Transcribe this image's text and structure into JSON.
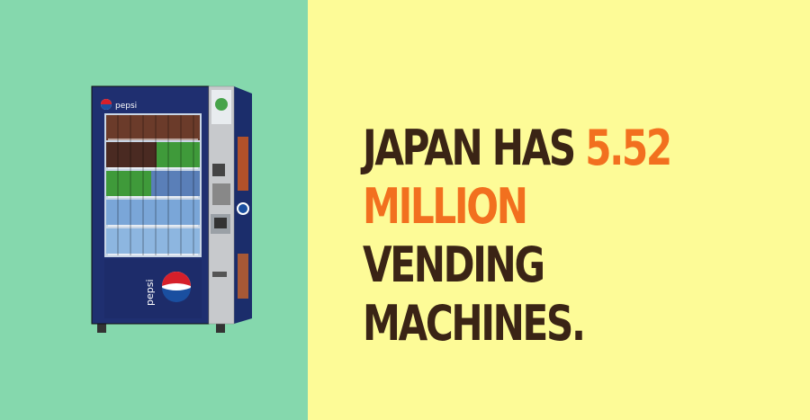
{
  "colors": {
    "left_background": "#85d8ad",
    "right_background": "#fdfb97",
    "headline_text": "#3a2415",
    "highlight_text": "#f2701f"
  },
  "machine": {
    "brand_top": "pepsi",
    "brand_front": "pepsi",
    "icon": "vending-machine-image"
  },
  "headline": {
    "part1": "JAPAN HAS",
    "number": "5.52",
    "highlight_word": "MILLION",
    "part2": "VENDING",
    "part3": "MACHINES."
  }
}
